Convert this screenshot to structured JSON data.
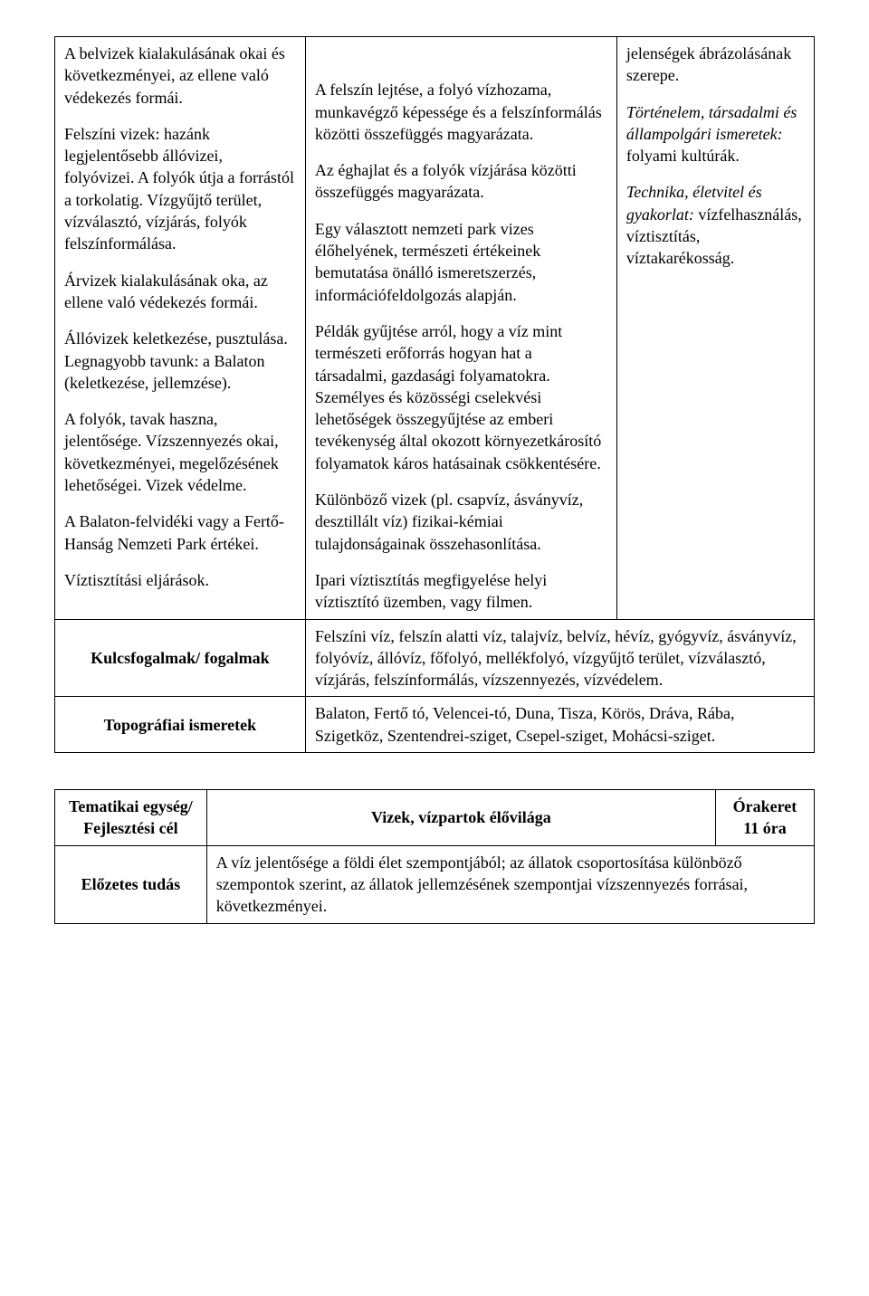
{
  "table1": {
    "row1": {
      "col1": {
        "paras": [
          "A belvizek kialakulásának okai és következményei, az ellene való védekezés formái.",
          "Felszíni vizek: hazánk legjelentősebb állóvizei, folyóvizei. A folyók útja a forrástól a torkolatig. Vízgyűjtő terület, vízválasztó, vízjárás, folyók felszínformálása.",
          "Árvizek kialakulásának oka, az ellene való védekezés formái.",
          "Állóvizek keletkezése, pusztulása. Legnagyobb tavunk: a Balaton (keletkezése, jellemzése).",
          "A folyók, tavak haszna, jelentősége. Vízszennyezés okai, következményei, megelőzésének lehetőségei. Vizek védelme.",
          "A Balaton-felvidéki vagy a Fertő-Hanság Nemzeti Park értékei.",
          "Víztisztítási eljárások."
        ]
      },
      "col2": {
        "paras": [
          "",
          "A felszín lejtése, a folyó vízhozama, munkavégző képessége és a felszínformálás közötti összefüggés magyarázata.",
          "Az éghajlat és a folyók vízjárása közötti összefüggés magyarázata.",
          "Egy választott nemzeti park vizes élőhelyének, természeti értékeinek bemutatása önálló ismeretszerzés, információfeldolgozás alapján.",
          "Példák gyűjtése arról, hogy a víz mint természeti erőforrás hogyan hat  a társadalmi, gazdasági folyamatokra. Személyes és közösségi cselekvési lehetőségek összegyűjtése az emberi tevékenység által okozott környezetkárosító folyamatok káros hatásainak csökkentésére.",
          "Különböző vizek (pl. csapvíz, ásványvíz, desztillált víz) fizikai-kémiai tulajdonságainak összehasonlítása.",
          "Ipari víztisztítás megfigyelése helyi víztisztító üzemben, vagy filmen."
        ]
      },
      "col3": {
        "p1": "jelenségek ábrázolásának szerepe.",
        "p2_italic": "Történelem, társadalmi és állampolgári ismeretek:",
        "p2_rest": " folyami kultúrák.",
        "p3_italic": "Technika, életvitel és gyakorlat:",
        "p3_rest": " vízfelhasználás, víztisztítás, víztakarékosság."
      }
    },
    "row2": {
      "label": "Kulcsfogalmak/ fogalmak",
      "content": "Felszíni víz, felszín alatti víz, talajvíz, belvíz, hévíz, gyógyvíz, ásványvíz, folyóvíz, állóvíz, főfolyó, mellékfolyó, vízgyűjtő terület, vízválasztó, vízjárás, felszínformálás, vízszennyezés, vízvédelem."
    },
    "row3": {
      "label": "Topográfiai ismeretek",
      "content": "Balaton, Fertő tó, Velencei-tó, Duna, Tisza, Körös, Dráva, Rába, Szigetköz, Szentendrei-sziget, Csepel-sziget, Mohácsi-sziget."
    }
  },
  "table2": {
    "row1": {
      "c1": "Tematikai egység/ Fejlesztési cél",
      "c2": "Vizek, vízpartok élővilága",
      "c3a": "Órakeret",
      "c3b": "11 óra"
    },
    "row2": {
      "c1": "Előzetes tudás",
      "c2": "A víz jelentősége a földi élet szempontjából; az állatok csoportosítása különböző szempontok szerint, az állatok jellemzésének szempontjai vízszennyezés forrásai, következményei."
    }
  }
}
